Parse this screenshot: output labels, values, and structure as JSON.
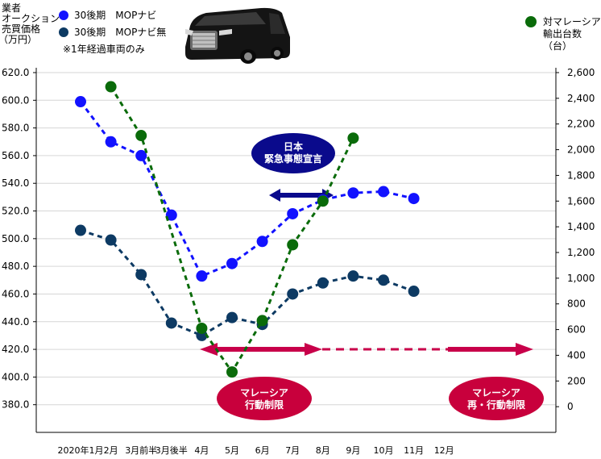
{
  "chart_data": {
    "type": "line",
    "categories": [
      "2020年1月",
      "2月",
      "3月前半",
      "3月後半",
      "4月",
      "5月",
      "6月",
      "7月",
      "8月",
      "9月",
      "10月",
      "11月",
      "12月"
    ],
    "left_axis": {
      "label_lines": [
        "業者",
        "オークション",
        "売買価格",
        "（万円）"
      ],
      "ylim": [
        360,
        620
      ],
      "ticks": [
        "620.0",
        "600.0",
        "580.0",
        "560.0",
        "540.0",
        "520.0",
        "500.0",
        "480.0",
        "460.0",
        "440.0",
        "420.0",
        "400.0",
        "380.0"
      ]
    },
    "right_axis": {
      "label_lines": [
        "対マレーシア",
        "輸出台数",
        "（台）"
      ],
      "ylim": [
        -200,
        2600
      ],
      "ticks": [
        "2,600",
        "2,400",
        "2,200",
        "2,000",
        "1,800",
        "1,600",
        "1,400",
        "1,200",
        "1,000",
        "800",
        "600",
        "400",
        "200",
        "0"
      ]
    },
    "series": [
      {
        "name": "30後期　MOPナビ",
        "color": "#1212ff",
        "axis": "left",
        "values": [
          599,
          570,
          560,
          517,
          473,
          482,
          498,
          518,
          528,
          533,
          534,
          529,
          null
        ]
      },
      {
        "name": "30後期　MOPナビ無",
        "color": "#0d3a63",
        "axis": "left",
        "values": [
          506,
          499,
          474,
          439,
          430,
          443,
          438,
          460,
          468,
          473,
          470,
          462,
          null
        ]
      },
      {
        "name": "対マレーシア輸出台数",
        "color": "#0a6b0a",
        "axis": "right",
        "values": [
          null,
          2490,
          2110,
          null,
          610,
          270,
          670,
          1260,
          1600,
          2090,
          null,
          null,
          null
        ]
      }
    ],
    "annotations": {
      "emergency": [
        "日本",
        "緊急事態宣言"
      ],
      "malaysia_mco": [
        "マレーシア",
        "行動制限"
      ],
      "malaysia_cmco": [
        "マレーシア",
        "再・行動制限"
      ]
    }
  },
  "legend": {
    "mop_navi": "30後期　MOPナビ",
    "mop_no_navi": "30後期　MOPナビ無",
    "note": "※1年経過車両のみ",
    "export_lines": [
      "対マレーシア",
      "輸出台数",
      "（台）"
    ]
  },
  "colors": {
    "blue": "#1212ff",
    "navy": "#0d3a63",
    "green": "#0a6b0a",
    "red": "#c8004a",
    "bubble_blue": "#0a0a8c",
    "bubble_red": "#c8003c",
    "grid": "#999999"
  }
}
